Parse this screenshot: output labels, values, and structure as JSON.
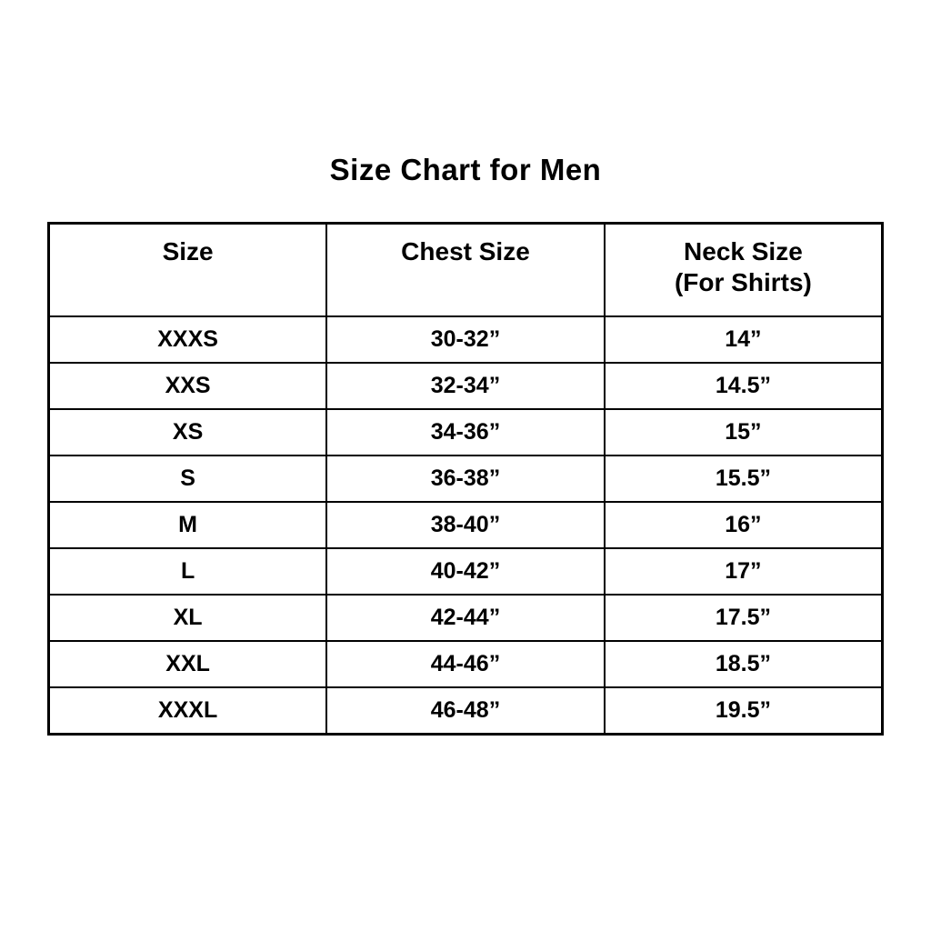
{
  "page": {
    "title": "Size Chart for Men"
  },
  "chart_data": {
    "type": "table",
    "title": "Size Chart for Men",
    "columns": [
      {
        "label": "Size",
        "sublabel": ""
      },
      {
        "label": "Chest Size",
        "sublabel": ""
      },
      {
        "label": "Neck Size",
        "sublabel": "(For Shirts)"
      }
    ],
    "rows": [
      {
        "size": "XXXS",
        "chest": "30-32”",
        "neck": "14”"
      },
      {
        "size": "XXS",
        "chest": "32-34”",
        "neck": "14.5”"
      },
      {
        "size": "XS",
        "chest": "34-36”",
        "neck": "15”"
      },
      {
        "size": "S",
        "chest": "36-38”",
        "neck": "15.5”"
      },
      {
        "size": "M",
        "chest": "38-40”",
        "neck": "16”"
      },
      {
        "size": "L",
        "chest": "40-42”",
        "neck": "17”"
      },
      {
        "size": "XL",
        "chest": "42-44”",
        "neck": "17.5”"
      },
      {
        "size": "XXL",
        "chest": "44-46”",
        "neck": "18.5”"
      },
      {
        "size": "XXXL",
        "chest": "46-48”",
        "neck": "19.5”"
      }
    ],
    "text_color": "#000000",
    "border_color": "#000000",
    "background_color": "#ffffff",
    "legend_position": "none",
    "grid": true
  }
}
